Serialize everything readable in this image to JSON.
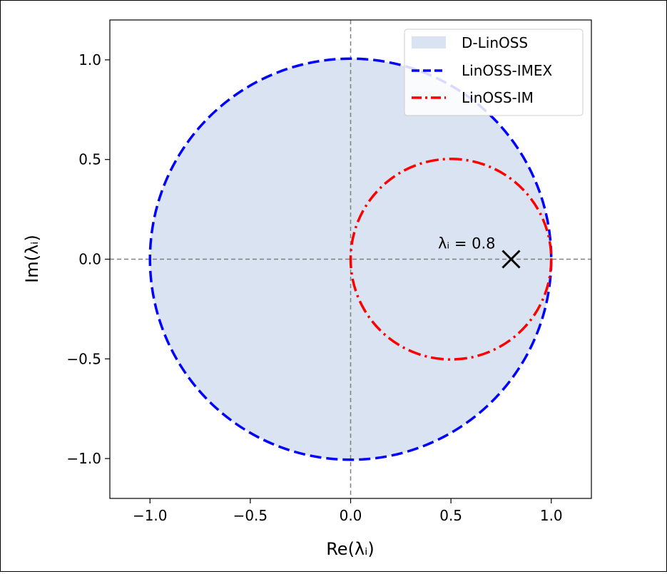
{
  "chart_data": {
    "type": "line",
    "xlabel": "Re(λᵢ)",
    "ylabel": "Im(λᵢ)",
    "xlim": [
      -1.2,
      1.2
    ],
    "ylim": [
      -1.2,
      1.2
    ],
    "xticks": [
      -1.0,
      -0.5,
      0.0,
      0.5,
      1.0
    ],
    "yticks": [
      -1.0,
      -0.5,
      0.0,
      0.5,
      1.0
    ],
    "xtick_labels": [
      "−1.0",
      "−0.5",
      "0.0",
      "0.5",
      "1.0"
    ],
    "ytick_labels": [
      "−1.0",
      "−0.5",
      "0.0",
      "0.5",
      "1.0"
    ],
    "reference_lines": {
      "x": 0,
      "y": 0,
      "style": "dashed",
      "color": "#808080"
    },
    "grid": false,
    "legend_position": "upper right",
    "series": [
      {
        "name": "D-LinOSS",
        "kind": "filled-disk",
        "center": [
          0,
          0
        ],
        "radius": 1.0,
        "color": "#d9e3f1"
      },
      {
        "name": "LinOSS-IMEX",
        "kind": "circle",
        "center": [
          0,
          0
        ],
        "radius": 1.0,
        "color": "#0000ff",
        "line_style": "dashed"
      },
      {
        "name": "LinOSS-IM",
        "kind": "circle",
        "center": [
          0.5,
          0
        ],
        "radius": 0.5,
        "color": "#ff0000",
        "line_style": "dashdot"
      }
    ],
    "annotations": [
      {
        "text": "λᵢ = 0.8",
        "marker": "x",
        "point": [
          0.8,
          0.0
        ],
        "marker_color": "#000000"
      }
    ]
  }
}
